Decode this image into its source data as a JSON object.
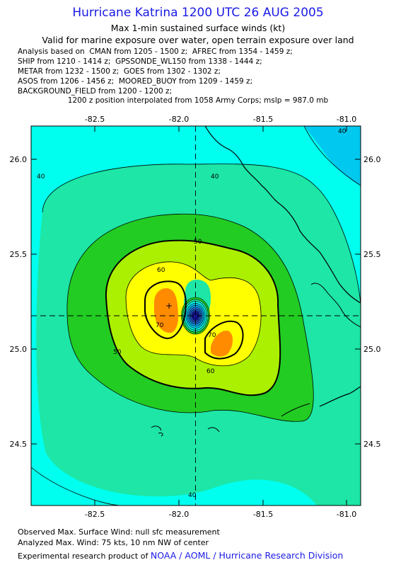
{
  "header": {
    "title": "Hurricane Katrina 1200 UTC 26 AUG 2005",
    "subtitle1": "Max 1-min sustained surface winds (kt)",
    "subtitle2": "Valid for marine exposure over water, open terrain exposure over land",
    "analysis_lines": [
      "Analysis based on  CMAN from 1205 - 1500 z;  AFREC from 1354 - 1459 z;",
      "SHIP from 1210 - 1414 z;  GPSSONDE_WL150 from 1338 - 1444 z;",
      "METAR from 1232 - 1500 z;  GOES from 1302 - 1302 z;",
      "ASOS from 1206 - 1456 z;  MOORED_BUOY from 1209 - 1459 z;",
      "BACKGROUND_FIELD from 1200 - 1200 z;"
    ],
    "position_note": "1200 z position interpolated from 1058 Army Corps; mslp = 987.0 mb"
  },
  "map": {
    "x_ticks": [
      "-82.5",
      "-82.0",
      "-81.5",
      "-81.0"
    ],
    "y_ticks": [
      "26.0",
      "25.5",
      "25.0",
      "24.5"
    ],
    "contour_labels": [
      "40",
      "40",
      "40",
      "50",
      "50",
      "60",
      "60",
      "70",
      "70",
      "40"
    ],
    "center": {
      "lon": -81.9,
      "lat": 25.2
    },
    "colors": {
      "wind_30_40": "#00ffee",
      "wind_40_50": "#1de6a6",
      "wind_50_60": "#22cc22",
      "wind_60_70": "#aaf000",
      "wind_70_75": "#ffff00",
      "wind_75_plus": "#ff8c00",
      "eye": "#1515a0",
      "northeast_low": "#00c8ee"
    }
  },
  "footer": {
    "observed": "Observed Max. Surface Wind: null sfc measurement",
    "analyzed": "Analyzed Max. Wind: 75 kts, 10 nm NW of center",
    "credit_prefix": "Experimental research product of",
    "credit_org": "NOAA / AOML / Hurricane Research Division"
  }
}
